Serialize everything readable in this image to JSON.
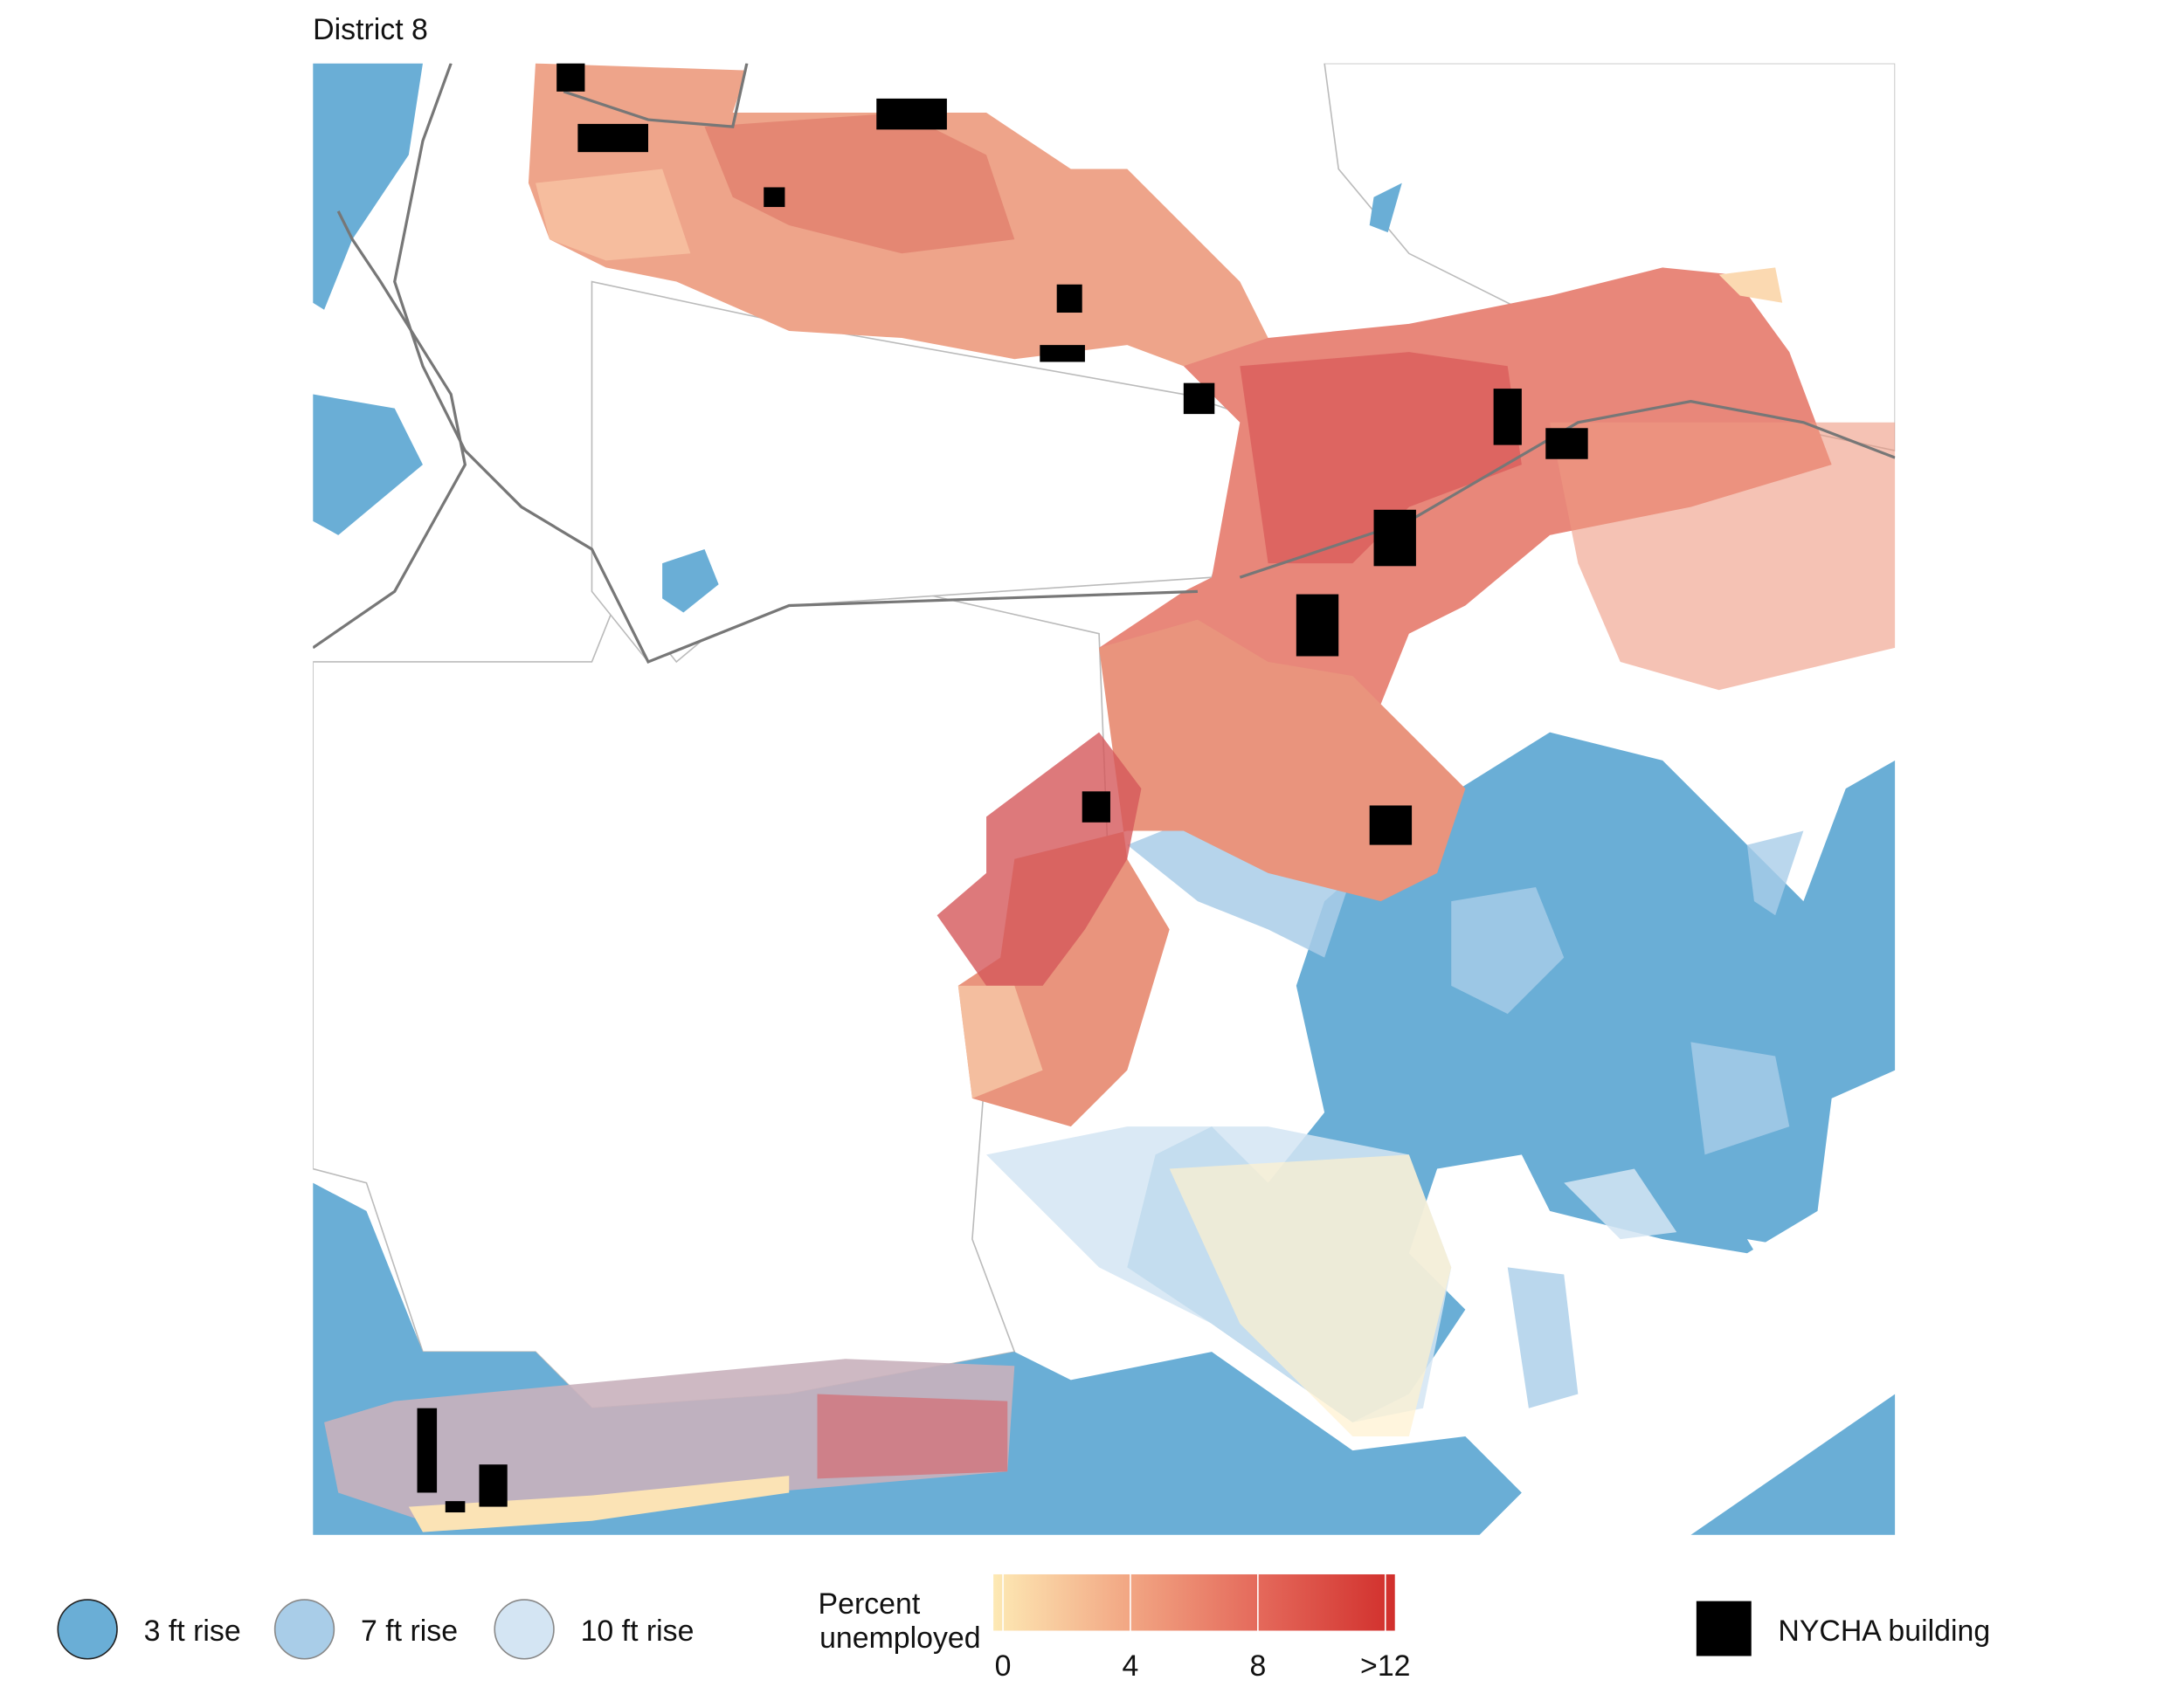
{
  "title": "District 8",
  "flood_legend": [
    {
      "label": "3 ft rise",
      "color": "#6aaed6"
    },
    {
      "label": "7 ft rise",
      "color": "#a9cde8"
    },
    {
      "label": "10 ft rise",
      "color": "#d4e5f3"
    }
  ],
  "colorbar": {
    "title_lines": [
      "Percent",
      "unemployed"
    ],
    "lim": [
      -0.3,
      12.3
    ],
    "colors": [
      "#fde9b4",
      "#f2a784",
      "#e4685a",
      "#d12f2c"
    ],
    "ticks": [
      0,
      4,
      8,
      {
        "value": 12,
        "label": ">12"
      }
    ]
  },
  "nycha_legend": {
    "label": "NYCHA building",
    "color": "#000000"
  }
}
